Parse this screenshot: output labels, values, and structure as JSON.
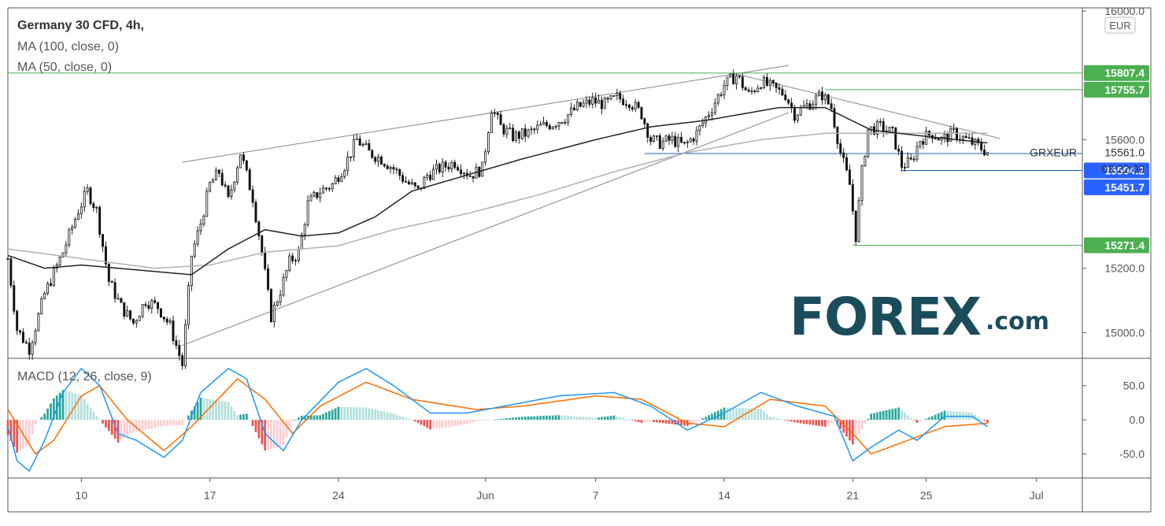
{
  "header": {
    "title": "Germany 30 CFD, 4h,",
    "ma100": "MA (100, close, 0)",
    "ma50": "MA (50, close, 0)"
  },
  "macd_header": "MACD (12, 26, close, 9)",
  "currency": "EUR",
  "symbol": "GRXEUR",
  "last_price": "15561.0",
  "countdown": "03:22:09",
  "logo": {
    "main": "FOREX",
    "suffix": ".com"
  },
  "colors": {
    "up": "#26a69a",
    "down": "#ef5350",
    "hist_up_strong": "#26a69a",
    "hist_up_weak": "#b2dfdb",
    "hist_down_strong": "#ef5350",
    "hist_down_weak": "#ffcdd2",
    "ma50": "#222222",
    "ma100": "#b0b0b0",
    "macd": "#2196f3",
    "signal": "#ff6d00",
    "green_level": "#4caf50",
    "blue_level": "#1565c0",
    "logo": "#1b4c5c"
  },
  "chart_data": {
    "type": "candlestick",
    "price_ticks": [
      16000,
      15600,
      15200,
      15000
    ],
    "price_tick_labels": [
      "16000.0",
      "15600.0",
      "15200.0",
      "15000.0"
    ],
    "price_range": [
      14920,
      16010
    ],
    "macd_ticks": [
      50,
      0,
      -50
    ],
    "macd_tick_labels": [
      "50.0",
      "0.0",
      "-50.0"
    ],
    "macd_range": [
      -85,
      90
    ],
    "x_range": [
      "2021-05-06T00:00",
      "2021-07-03T12:00"
    ],
    "x_ticks": [
      {
        "date": "2021-05-10",
        "label": "10"
      },
      {
        "date": "2021-05-17",
        "label": "17"
      },
      {
        "date": "2021-05-24",
        "label": "24"
      },
      {
        "date": "2021-06-01",
        "label": "Jun"
      },
      {
        "date": "2021-06-07",
        "label": "7"
      },
      {
        "date": "2021-06-14",
        "label": "14"
      },
      {
        "date": "2021-06-21",
        "label": "21"
      },
      {
        "date": "2021-06-25",
        "label": "25"
      },
      {
        "date": "2021-07-01",
        "label": "Jul"
      }
    ],
    "horizontal_levels": [
      {
        "value": 15807.4,
        "label": "15807.4",
        "color": "green",
        "from": "2021-05-06T00:00"
      },
      {
        "value": 15755.7,
        "label": "15755.7",
        "color": "green",
        "from": "2021-06-19T12:00"
      },
      {
        "value": 15504.2,
        "label": "15504.2",
        "color": "blue",
        "from": "2021-06-23T16:00"
      },
      {
        "value": 15451.7,
        "label": "15451.7",
        "color": "blue",
        "from": null
      },
      {
        "value": 15271.4,
        "label": "15271.4",
        "color": "green",
        "from": "2021-06-21T00:00"
      },
      {
        "value": 15557,
        "label": "",
        "color": "blue",
        "from": "2021-06-09T16:00"
      }
    ],
    "trendlines": [
      {
        "from": [
          "2021-05-15T12:00",
          15530
        ],
        "to": [
          "2021-06-17T12:00",
          15831
        ]
      },
      {
        "from": [
          "2021-05-15T12:00",
          14960
        ],
        "to": [
          "2021-06-17T12:00",
          15684
        ]
      },
      {
        "from": [
          "2021-06-14T16:00",
          15804
        ],
        "to": [
          "2021-06-29T00:00",
          15604
        ]
      }
    ],
    "price_anchors": [
      [
        "2021-05-06T00:00",
        15230
      ],
      [
        "2021-05-06T12:00",
        15010
      ],
      [
        "2021-05-07T04:00",
        14950
      ],
      [
        "2021-05-08T00:00",
        15120
      ],
      [
        "2021-05-09T00:00",
        15250
      ],
      [
        "2021-05-09T20:00",
        15380
      ],
      [
        "2021-05-10T08:00",
        15440
      ],
      [
        "2021-05-10T20:00",
        15380
      ],
      [
        "2021-05-11T12:00",
        15160
      ],
      [
        "2021-05-12T04:00",
        15080
      ],
      [
        "2021-05-12T20:00",
        15030
      ],
      [
        "2021-05-13T12:00",
        15100
      ],
      [
        "2021-05-14T04:00",
        15080
      ],
      [
        "2021-05-14T20:00",
        15020
      ],
      [
        "2021-05-15T12:00",
        14900
      ],
      [
        "2021-05-16T00:00",
        15240
      ],
      [
        "2021-05-16T12:00",
        15340
      ],
      [
        "2021-05-17T00:00",
        15460
      ],
      [
        "2021-05-17T12:00",
        15500
      ],
      [
        "2021-05-18T00:00",
        15410
      ],
      [
        "2021-05-18T16:00",
        15560
      ],
      [
        "2021-05-19T08:00",
        15420
      ],
      [
        "2021-05-19T20:00",
        15250
      ],
      [
        "2021-05-20T08:00",
        15050
      ],
      [
        "2021-05-20T20:00",
        15130
      ],
      [
        "2021-05-21T08:00",
        15220
      ],
      [
        "2021-05-21T20:00",
        15250
      ],
      [
        "2021-05-22T08:00",
        15400
      ],
      [
        "2021-05-23T00:00",
        15440
      ],
      [
        "2021-05-23T16:00",
        15460
      ],
      [
        "2021-05-24T08:00",
        15520
      ],
      [
        "2021-05-25T00:00",
        15600
      ],
      [
        "2021-05-25T16:00",
        15560
      ],
      [
        "2021-05-26T08:00",
        15540
      ],
      [
        "2021-05-27T00:00",
        15510
      ],
      [
        "2021-05-27T16:00",
        15470
      ],
      [
        "2021-05-28T08:00",
        15440
      ],
      [
        "2021-05-28T20:00",
        15490
      ],
      [
        "2021-05-29T12:00",
        15510
      ],
      [
        "2021-05-30T08:00",
        15530
      ],
      [
        "2021-05-31T04:00",
        15490
      ],
      [
        "2021-05-31T20:00",
        15510
      ],
      [
        "2021-06-01T08:00",
        15700
      ],
      [
        "2021-06-01T20:00",
        15640
      ],
      [
        "2021-06-02T12:00",
        15610
      ],
      [
        "2021-06-03T08:00",
        15620
      ],
      [
        "2021-06-04T00:00",
        15640
      ],
      [
        "2021-06-04T16:00",
        15650
      ],
      [
        "2021-06-05T08:00",
        15670
      ],
      [
        "2021-06-06T00:00",
        15700
      ],
      [
        "2021-06-06T20:00",
        15720
      ],
      [
        "2021-06-07T12:00",
        15710
      ],
      [
        "2021-06-08T04:00",
        15730
      ],
      [
        "2021-06-08T20:00",
        15720
      ],
      [
        "2021-06-09T12:00",
        15680
      ],
      [
        "2021-06-10T00:00",
        15600
      ],
      [
        "2021-06-10T12:00",
        15590
      ],
      [
        "2021-06-11T04:00",
        15600
      ],
      [
        "2021-06-11T20:00",
        15580
      ],
      [
        "2021-06-12T12:00",
        15620
      ],
      [
        "2021-06-13T08:00",
        15700
      ],
      [
        "2021-06-14T00:00",
        15770
      ],
      [
        "2021-06-14T16:00",
        15800
      ],
      [
        "2021-06-15T08:00",
        15740
      ],
      [
        "2021-06-16T00:00",
        15780
      ],
      [
        "2021-06-16T16:00",
        15760
      ],
      [
        "2021-06-17T08:00",
        15740
      ],
      [
        "2021-06-17T20:00",
        15680
      ],
      [
        "2021-06-18T08:00",
        15700
      ],
      [
        "2021-06-18T20:00",
        15720
      ],
      [
        "2021-06-19T08:00",
        15740
      ],
      [
        "2021-06-19T20:00",
        15700
      ],
      [
        "2021-06-20T08:00",
        15560
      ],
      [
        "2021-06-20T20:00",
        15460
      ],
      [
        "2021-06-21T04:00",
        15300
      ],
      [
        "2021-06-21T12:00",
        15500
      ],
      [
        "2021-06-21T20:00",
        15630
      ],
      [
        "2021-06-22T12:00",
        15640
      ],
      [
        "2021-06-23T04:00",
        15620
      ],
      [
        "2021-06-23T16:00",
        15520
      ],
      [
        "2021-06-24T04:00",
        15530
      ],
      [
        "2021-06-24T16:00",
        15600
      ],
      [
        "2021-06-25T08:00",
        15620
      ],
      [
        "2021-06-25T20:00",
        15600
      ],
      [
        "2021-06-26T12:00",
        15620
      ],
      [
        "2021-06-27T04:00",
        15600
      ],
      [
        "2021-06-27T20:00",
        15580
      ],
      [
        "2021-06-28T08:00",
        15561
      ]
    ],
    "ma50_anchors": [
      [
        "2021-05-06T00:00",
        15240
      ],
      [
        "2021-05-08T00:00",
        15200
      ],
      [
        "2021-05-10T00:00",
        15210
      ],
      [
        "2021-05-12T00:00",
        15200
      ],
      [
        "2021-05-14T00:00",
        15190
      ],
      [
        "2021-05-16T00:00",
        15180
      ],
      [
        "2021-05-18T00:00",
        15260
      ],
      [
        "2021-05-20T00:00",
        15320
      ],
      [
        "2021-05-22T00:00",
        15300
      ],
      [
        "2021-05-24T00:00",
        15310
      ],
      [
        "2021-05-26T00:00",
        15360
      ],
      [
        "2021-05-28T00:00",
        15440
      ],
      [
        "2021-05-31T00:00",
        15490
      ],
      [
        "2021-06-03T00:00",
        15540
      ],
      [
        "2021-06-07T00:00",
        15600
      ],
      [
        "2021-06-10T00:00",
        15640
      ],
      [
        "2021-06-13T00:00",
        15660
      ],
      [
        "2021-06-17T00:00",
        15700
      ],
      [
        "2021-06-19T12:00",
        15700
      ],
      [
        "2021-06-22T00:00",
        15630
      ],
      [
        "2021-06-25T00:00",
        15610
      ],
      [
        "2021-06-28T08:00",
        15590
      ]
    ],
    "ma100_anchors": [
      [
        "2021-05-06T00:00",
        15260
      ],
      [
        "2021-05-10T00:00",
        15230
      ],
      [
        "2021-05-14T00:00",
        15200
      ],
      [
        "2021-05-17T00:00",
        15210
      ],
      [
        "2021-05-20T00:00",
        15250
      ],
      [
        "2021-05-24T00:00",
        15270
      ],
      [
        "2021-05-27T00:00",
        15320
      ],
      [
        "2021-05-31T00:00",
        15370
      ],
      [
        "2021-06-04T00:00",
        15430
      ],
      [
        "2021-06-08T00:00",
        15500
      ],
      [
        "2021-06-12T00:00",
        15560
      ],
      [
        "2021-06-16T00:00",
        15600
      ],
      [
        "2021-06-19T12:00",
        15620
      ],
      [
        "2021-06-23T00:00",
        15620
      ],
      [
        "2021-06-28T08:00",
        15620
      ]
    ],
    "macd_anchors": [
      [
        "2021-05-06T00:00",
        -10
      ],
      [
        "2021-05-06T12:00",
        -60
      ],
      [
        "2021-05-07T04:00",
        -75
      ],
      [
        "2021-05-08T00:00",
        -30
      ],
      [
        "2021-05-09T00:00",
        40
      ],
      [
        "2021-05-10T00:00",
        75
      ],
      [
        "2021-05-11T00:00",
        50
      ],
      [
        "2021-05-12T00:00",
        -20
      ],
      [
        "2021-05-13T00:00",
        -30
      ],
      [
        "2021-05-14T12:00",
        -55
      ],
      [
        "2021-05-15T12:00",
        -30
      ],
      [
        "2021-05-16T12:00",
        40
      ],
      [
        "2021-05-18T00:00",
        75
      ],
      [
        "2021-05-19T00:00",
        60
      ],
      [
        "2021-05-20T00:00",
        -20
      ],
      [
        "2021-05-21T00:00",
        -45
      ],
      [
        "2021-05-22T00:00",
        0
      ],
      [
        "2021-05-24T00:00",
        55
      ],
      [
        "2021-05-25T12:00",
        75
      ],
      [
        "2021-05-27T00:00",
        50
      ],
      [
        "2021-05-29T00:00",
        10
      ],
      [
        "2021-05-31T00:00",
        10
      ],
      [
        "2021-06-02T00:00",
        20
      ],
      [
        "2021-06-05T00:00",
        35
      ],
      [
        "2021-06-08T00:00",
        40
      ],
      [
        "2021-06-10T00:00",
        20
      ],
      [
        "2021-06-12T00:00",
        -15
      ],
      [
        "2021-06-14T00:00",
        10
      ],
      [
        "2021-06-16T00:00",
        40
      ],
      [
        "2021-06-18T00:00",
        20
      ],
      [
        "2021-06-20T00:00",
        5
      ],
      [
        "2021-06-21T00:00",
        -60
      ],
      [
        "2021-06-22T00:00",
        -40
      ],
      [
        "2021-06-23T12:00",
        -15
      ],
      [
        "2021-06-24T12:00",
        -30
      ],
      [
        "2021-06-26T00:00",
        5
      ],
      [
        "2021-06-27T12:00",
        5
      ],
      [
        "2021-06-28T08:00",
        -10
      ]
    ],
    "signal_anchors": [
      [
        "2021-05-06T00:00",
        15
      ],
      [
        "2021-05-07T12:00",
        -50
      ],
      [
        "2021-05-08T12:00",
        -30
      ],
      [
        "2021-05-10T00:00",
        35
      ],
      [
        "2021-05-11T00:00",
        50
      ],
      [
        "2021-05-12T12:00",
        0
      ],
      [
        "2021-05-14T12:00",
        -45
      ],
      [
        "2021-05-16T00:00",
        -10
      ],
      [
        "2021-05-18T12:00",
        60
      ],
      [
        "2021-05-20T00:00",
        30
      ],
      [
        "2021-05-21T12:00",
        -20
      ],
      [
        "2021-05-23T00:00",
        20
      ],
      [
        "2021-05-25T12:00",
        55
      ],
      [
        "2021-05-28T00:00",
        30
      ],
      [
        "2021-05-31T12:00",
        15
      ],
      [
        "2021-06-03T00:00",
        20
      ],
      [
        "2021-06-07T00:00",
        35
      ],
      [
        "2021-06-09T12:00",
        30
      ],
      [
        "2021-06-12T00:00",
        -5
      ],
      [
        "2021-06-14T00:00",
        -10
      ],
      [
        "2021-06-16T12:00",
        30
      ],
      [
        "2021-06-19T12:00",
        20
      ],
      [
        "2021-06-21T00:00",
        -20
      ],
      [
        "2021-06-22T00:00",
        -50
      ],
      [
        "2021-06-24T00:00",
        -30
      ],
      [
        "2021-06-26T00:00",
        -10
      ],
      [
        "2021-06-28T08:00",
        -5
      ]
    ]
  }
}
